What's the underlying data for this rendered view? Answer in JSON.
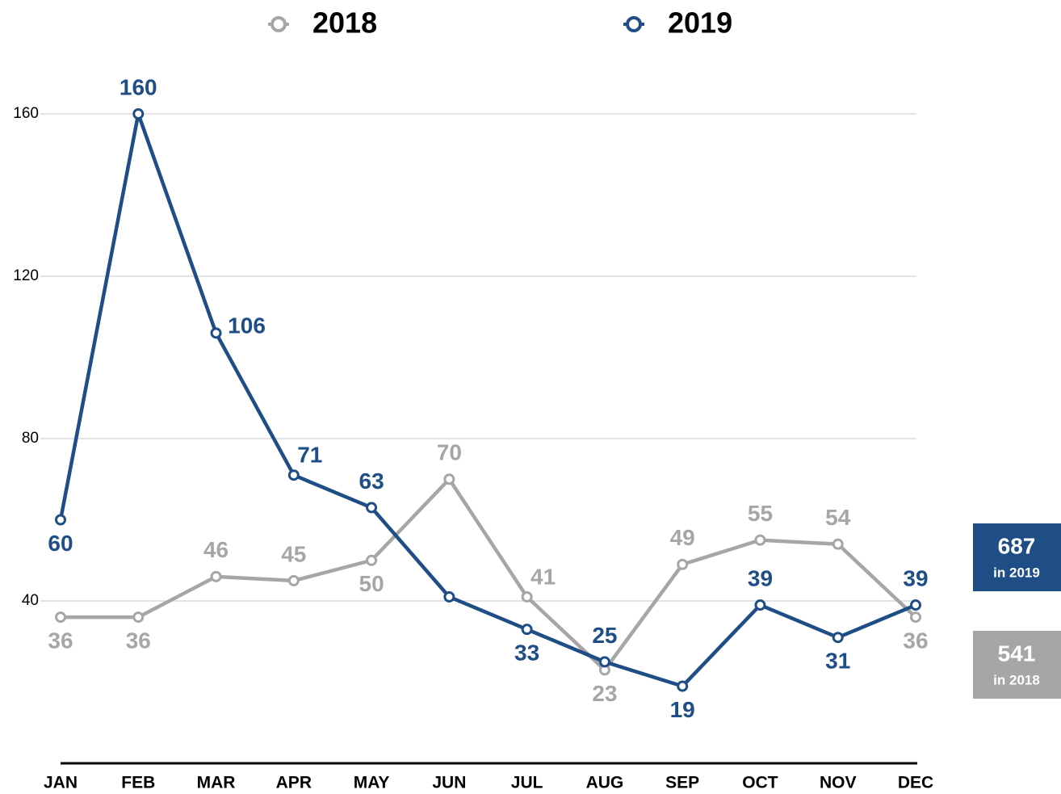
{
  "chart_data": {
    "type": "line",
    "categories": [
      "JAN",
      "FEB",
      "MAR",
      "APR",
      "MAY",
      "JUN",
      "JUL",
      "AUG",
      "SEP",
      "OCT",
      "NOV",
      "DEC"
    ],
    "series": [
      {
        "name": "2018",
        "color": "#a6a6a6",
        "values": [
          36,
          36,
          46,
          45,
          50,
          70,
          41,
          23,
          49,
          55,
          54,
          36
        ]
      },
      {
        "name": "2019",
        "color": "#1f4e87",
        "values": [
          60,
          160,
          106,
          71,
          63,
          41,
          33,
          25,
          19,
          39,
          31,
          39
        ],
        "value_labels": [
          "60",
          "160",
          "106",
          "71",
          "63",
          null,
          "33",
          "25",
          "19",
          "39",
          "31",
          "39"
        ]
      }
    ],
    "ylim": [
      0,
      160
    ],
    "yticks": [
      40,
      80,
      120,
      160
    ],
    "grid": true,
    "totals": [
      {
        "value": 687,
        "label": "in 2019",
        "color": "#1f4e87"
      },
      {
        "value": 541,
        "label": "in 2018",
        "color": "#a6a6a6"
      }
    ]
  }
}
